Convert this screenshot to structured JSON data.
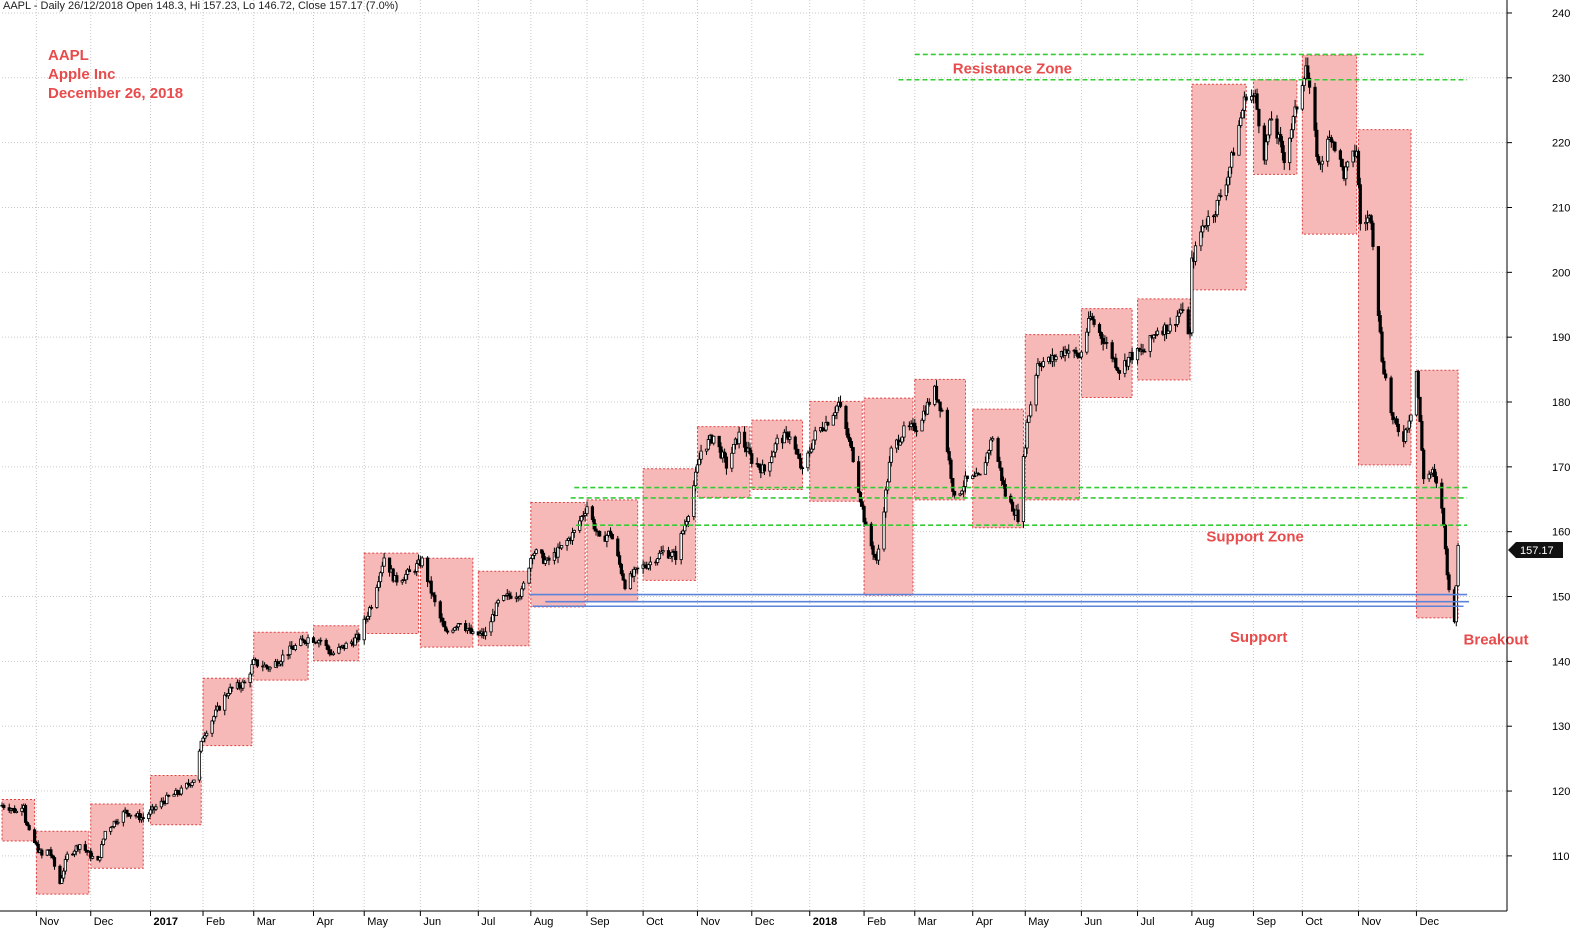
{
  "header": {
    "text": "AAPL - Daily 26/12/2018 Open 148.3, Hi 157.23, Lo 146.72, Close 157.17 (7.0%)"
  },
  "annotations": {
    "ticker": "AAPL",
    "company": "Apple Inc",
    "date": "December 26, 2018"
  },
  "colors": {
    "box_fill": "#f7b8b8",
    "box_border": "#e04040",
    "green_line": "#33cc33",
    "blue_line": "#5b84d8",
    "label_red": "#e84b4b",
    "grid": "#c8c8c8",
    "candle": "#000000"
  },
  "chart_data": {
    "type": "candlestick",
    "title": "AAPL - Daily 26/12/2018 Open 148.3, Hi 157.23, Lo 146.72, Close 157.17 (7.0%)",
    "ohlc_last": {
      "date": "2018-12-26",
      "open": 148.3,
      "high": 157.23,
      "low": 146.72,
      "close": 157.17,
      "change_pct": "7.0%"
    },
    "last_price_label": "157.17",
    "x_range": [
      "2016-10-13",
      "2019-01-22"
    ],
    "y_range": [
      101.5,
      242
    ],
    "y_ticks": [
      110,
      120,
      130,
      140,
      150,
      160,
      170,
      180,
      190,
      200,
      210,
      220,
      230,
      240
    ],
    "x_ticks": [
      {
        "label": "Nov",
        "date": "2016-11-01",
        "bold": false
      },
      {
        "label": "Dec",
        "date": "2016-12-01",
        "bold": false
      },
      {
        "label": "2017",
        "date": "2017-01-03",
        "bold": true
      },
      {
        "label": "Feb",
        "date": "2017-02-01",
        "bold": false
      },
      {
        "label": "Mar",
        "date": "2017-03-01",
        "bold": false
      },
      {
        "label": "Apr",
        "date": "2017-04-03",
        "bold": false
      },
      {
        "label": "May",
        "date": "2017-05-01",
        "bold": false
      },
      {
        "label": "Jun",
        "date": "2017-06-01",
        "bold": false
      },
      {
        "label": "Jul",
        "date": "2017-07-03",
        "bold": false
      },
      {
        "label": "Aug",
        "date": "2017-08-01",
        "bold": false
      },
      {
        "label": "Sep",
        "date": "2017-09-01",
        "bold": false
      },
      {
        "label": "Oct",
        "date": "2017-10-02",
        "bold": false
      },
      {
        "label": "Nov",
        "date": "2017-11-01",
        "bold": false
      },
      {
        "label": "Dec",
        "date": "2017-12-01",
        "bold": false
      },
      {
        "label": "2018",
        "date": "2018-01-02",
        "bold": true
      },
      {
        "label": "Feb",
        "date": "2018-02-01",
        "bold": false
      },
      {
        "label": "Mar",
        "date": "2018-03-01",
        "bold": false
      },
      {
        "label": "Apr",
        "date": "2018-04-02",
        "bold": false
      },
      {
        "label": "May",
        "date": "2018-05-01",
        "bold": false
      },
      {
        "label": "Jun",
        "date": "2018-06-01",
        "bold": false
      },
      {
        "label": "Jul",
        "date": "2018-07-02",
        "bold": false
      },
      {
        "label": "Aug",
        "date": "2018-08-01",
        "bold": false
      },
      {
        "label": "Sep",
        "date": "2018-09-04",
        "bold": false
      },
      {
        "label": "Oct",
        "date": "2018-10-01",
        "bold": false
      },
      {
        "label": "Nov",
        "date": "2018-11-01",
        "bold": false
      },
      {
        "label": "Dec",
        "date": "2018-12-03",
        "bold": false
      }
    ],
    "price_path": [
      [
        "2016-10-13",
        117.8
      ],
      [
        "2016-10-17",
        117.5
      ],
      [
        "2016-10-21",
        116.8
      ],
      [
        "2016-10-25",
        118.2
      ],
      [
        "2016-10-26",
        115.5
      ],
      [
        "2016-10-28",
        113.5
      ],
      [
        "2016-11-01",
        111.5
      ],
      [
        "2016-11-04",
        110.0
      ],
      [
        "2016-11-08",
        111.0
      ],
      [
        "2016-11-14",
        105.8
      ],
      [
        "2016-11-18",
        110.0
      ],
      [
        "2016-11-25",
        111.8
      ],
      [
        "2016-12-01",
        110.0
      ],
      [
        "2016-12-05",
        109.0
      ],
      [
        "2016-12-09",
        113.8
      ],
      [
        "2016-12-14",
        115.2
      ],
      [
        "2016-12-20",
        116.8
      ],
      [
        "2016-12-30",
        115.8
      ],
      [
        "2017-01-06",
        117.5
      ],
      [
        "2017-01-13",
        119.0
      ],
      [
        "2017-01-20",
        120.0
      ],
      [
        "2017-01-27",
        121.9
      ],
      [
        "2017-02-01",
        128.5
      ],
      [
        "2017-02-08",
        132.0
      ],
      [
        "2017-02-15",
        135.5
      ],
      [
        "2017-02-24",
        136.6
      ],
      [
        "2017-03-01",
        139.8
      ],
      [
        "2017-03-10",
        139.0
      ],
      [
        "2017-03-20",
        141.5
      ],
      [
        "2017-03-31",
        143.6
      ],
      [
        "2017-04-07",
        143.3
      ],
      [
        "2017-04-13",
        141.1
      ],
      [
        "2017-04-20",
        142.3
      ],
      [
        "2017-04-28",
        143.7
      ],
      [
        "2017-05-05",
        148.9
      ],
      [
        "2017-05-12",
        156.1
      ],
      [
        "2017-05-18",
        152.5
      ],
      [
        "2017-05-26",
        153.6
      ],
      [
        "2017-06-02",
        155.5
      ],
      [
        "2017-06-09",
        148.9
      ],
      [
        "2017-06-15",
        144.3
      ],
      [
        "2017-06-23",
        146.3
      ],
      [
        "2017-06-30",
        144.0
      ],
      [
        "2017-07-07",
        144.2
      ],
      [
        "2017-07-14",
        149.0
      ],
      [
        "2017-07-21",
        150.3
      ],
      [
        "2017-07-27",
        150.6
      ],
      [
        "2017-08-02",
        157.1
      ],
      [
        "2017-08-10",
        155.3
      ],
      [
        "2017-08-18",
        157.5
      ],
      [
        "2017-08-25",
        159.9
      ],
      [
        "2017-09-01",
        164.0
      ],
      [
        "2017-09-08",
        158.6
      ],
      [
        "2017-09-14",
        159.9
      ],
      [
        "2017-09-22",
        151.9
      ],
      [
        "2017-09-29",
        154.1
      ],
      [
        "2017-10-06",
        155.3
      ],
      [
        "2017-10-13",
        156.9
      ],
      [
        "2017-10-20",
        156.3
      ],
      [
        "2017-10-27",
        163.1
      ],
      [
        "2017-11-03",
        172.5
      ],
      [
        "2017-11-10",
        174.7
      ],
      [
        "2017-11-17",
        170.2
      ],
      [
        "2017-11-24",
        174.9
      ],
      [
        "2017-12-01",
        171.1
      ],
      [
        "2017-12-08",
        169.4
      ],
      [
        "2017-12-15",
        173.9
      ],
      [
        "2017-12-22",
        175.0
      ],
      [
        "2017-12-29",
        169.2
      ],
      [
        "2018-01-05",
        175.0
      ],
      [
        "2018-01-12",
        177.1
      ],
      [
        "2018-01-18",
        179.8
      ],
      [
        "2018-01-26",
        171.5
      ],
      [
        "2018-02-02",
        160.5
      ],
      [
        "2018-02-08",
        155.2
      ],
      [
        "2018-02-16",
        172.4
      ],
      [
        "2018-02-23",
        175.5
      ],
      [
        "2018-03-02",
        176.2
      ],
      [
        "2018-03-12",
        181.7
      ],
      [
        "2018-03-16",
        178.7
      ],
      [
        "2018-03-23",
        164.9
      ],
      [
        "2018-03-29",
        167.8
      ],
      [
        "2018-04-06",
        168.4
      ],
      [
        "2018-04-13",
        174.7
      ],
      [
        "2018-04-20",
        165.7
      ],
      [
        "2018-04-27",
        162.3
      ],
      [
        "2018-05-02",
        176.6
      ],
      [
        "2018-05-08",
        186.1
      ],
      [
        "2018-05-15",
        186.4
      ],
      [
        "2018-05-24",
        188.2
      ],
      [
        "2018-05-31",
        186.9
      ],
      [
        "2018-06-06",
        193.0
      ],
      [
        "2018-06-15",
        188.8
      ],
      [
        "2018-06-22",
        184.9
      ],
      [
        "2018-06-28",
        187.1
      ],
      [
        "2018-07-06",
        187.9
      ],
      [
        "2018-07-13",
        191.3
      ],
      [
        "2018-07-20",
        191.4
      ],
      [
        "2018-07-26",
        194.2
      ],
      [
        "2018-07-31",
        190.3
      ],
      [
        "2018-08-01",
        201.5
      ],
      [
        "2018-08-07",
        207.1
      ],
      [
        "2018-08-14",
        209.8
      ],
      [
        "2018-08-21",
        215.0
      ],
      [
        "2018-08-31",
        227.6
      ],
      [
        "2018-09-05",
        226.9
      ],
      [
        "2018-09-10",
        218.3
      ],
      [
        "2018-09-14",
        223.8
      ],
      [
        "2018-09-21",
        217.7
      ],
      [
        "2018-09-28",
        225.7
      ],
      [
        "2018-10-03",
        232.1
      ],
      [
        "2018-10-10",
        216.4
      ],
      [
        "2018-10-17",
        221.2
      ],
      [
        "2018-10-24",
        215.1
      ],
      [
        "2018-10-31",
        218.9
      ],
      [
        "2018-11-02",
        207.5
      ],
      [
        "2018-11-08",
        208.5
      ],
      [
        "2018-11-14",
        186.8
      ],
      [
        "2018-11-20",
        176.98
      ],
      [
        "2018-11-26",
        174.6
      ],
      [
        "2018-11-30",
        178.6
      ],
      [
        "2018-12-03",
        184.8
      ],
      [
        "2018-12-07",
        168.5
      ],
      [
        "2018-12-12",
        169.1
      ],
      [
        "2018-12-17",
        163.9
      ],
      [
        "2018-12-21",
        150.7
      ],
      [
        "2018-12-24",
        146.8
      ],
      [
        "2018-12-26",
        157.2
      ]
    ],
    "monthly_boxes": [
      {
        "start": "2016-10-13",
        "end": "2016-10-31",
        "high": 118.7,
        "low": 112.3
      },
      {
        "start": "2016-11-01",
        "end": "2016-11-30",
        "high": 113.8,
        "low": 104.1
      },
      {
        "start": "2016-12-01",
        "end": "2016-12-30",
        "high": 118.0,
        "low": 108.1
      },
      {
        "start": "2017-01-03",
        "end": "2017-01-31",
        "high": 122.4,
        "low": 114.8
      },
      {
        "start": "2017-02-01",
        "end": "2017-02-28",
        "high": 137.4,
        "low": 127.0
      },
      {
        "start": "2017-03-01",
        "end": "2017-03-31",
        "high": 144.5,
        "low": 137.1
      },
      {
        "start": "2017-04-03",
        "end": "2017-04-28",
        "high": 145.5,
        "low": 140.1
      },
      {
        "start": "2017-05-01",
        "end": "2017-05-31",
        "high": 156.7,
        "low": 144.3
      },
      {
        "start": "2017-06-01",
        "end": "2017-06-30",
        "high": 155.9,
        "low": 142.2
      },
      {
        "start": "2017-07-03",
        "end": "2017-07-31",
        "high": 153.9,
        "low": 142.4
      },
      {
        "start": "2017-08-01",
        "end": "2017-08-31",
        "high": 164.5,
        "low": 148.4
      },
      {
        "start": "2017-09-01",
        "end": "2017-09-29",
        "high": 164.9,
        "low": 149.2
      },
      {
        "start": "2017-10-02",
        "end": "2017-10-31",
        "high": 169.7,
        "low": 152.5
      },
      {
        "start": "2017-11-01",
        "end": "2017-11-30",
        "high": 176.2,
        "low": 165.3
      },
      {
        "start": "2017-12-01",
        "end": "2017-12-29",
        "high": 177.2,
        "low": 166.5
      },
      {
        "start": "2018-01-02",
        "end": "2018-01-31",
        "high": 180.1,
        "low": 164.7
      },
      {
        "start": "2018-02-01",
        "end": "2018-02-28",
        "high": 180.6,
        "low": 150.2
      },
      {
        "start": "2018-03-01",
        "end": "2018-03-29",
        "high": 183.5,
        "low": 164.9
      },
      {
        "start": "2018-04-02",
        "end": "2018-04-30",
        "high": 178.9,
        "low": 160.6
      },
      {
        "start": "2018-05-01",
        "end": "2018-05-31",
        "high": 190.4,
        "low": 164.9
      },
      {
        "start": "2018-06-01",
        "end": "2018-06-29",
        "high": 194.4,
        "low": 180.7
      },
      {
        "start": "2018-07-02",
        "end": "2018-07-31",
        "high": 195.9,
        "low": 183.4
      },
      {
        "start": "2018-08-01",
        "end": "2018-08-31",
        "high": 229.0,
        "low": 197.3
      },
      {
        "start": "2018-09-04",
        "end": "2018-09-28",
        "high": 229.7,
        "low": 215.1
      },
      {
        "start": "2018-10-01",
        "end": "2018-10-31",
        "high": 233.5,
        "low": 205.9
      },
      {
        "start": "2018-11-01",
        "end": "2018-11-30",
        "high": 222.0,
        "low": 170.3
      },
      {
        "start": "2018-12-03",
        "end": "2018-12-26",
        "high": 184.9,
        "low": 146.7
      }
    ],
    "resistance_lines": [
      {
        "y": 233.6,
        "from": "2018-03-01",
        "to": "2018-12-07"
      },
      {
        "y": 229.7,
        "from": "2018-02-20",
        "to": "2018-12-31"
      }
    ],
    "support_zone_lines": [
      {
        "y": 166.8,
        "from": "2017-08-25",
        "to": "2019-01-01"
      },
      {
        "y": 165.2,
        "from": "2017-08-23",
        "to": "2018-12-31"
      },
      {
        "y": 161.0,
        "from": "2017-08-26",
        "to": "2018-12-31"
      }
    ],
    "support_lines": [
      {
        "y": 150.3,
        "from": "2017-07-31",
        "to": "2018-12-31"
      },
      {
        "y": 149.2,
        "from": "2017-08-09",
        "to": "2019-01-01"
      },
      {
        "y": 148.5,
        "from": "2017-08-02",
        "to": "2018-12-29"
      }
    ],
    "labels": {
      "resistance_zone": "Resistance Zone",
      "support_zone": "Support Zone",
      "support": "Support",
      "breakout": "Breakout"
    }
  }
}
